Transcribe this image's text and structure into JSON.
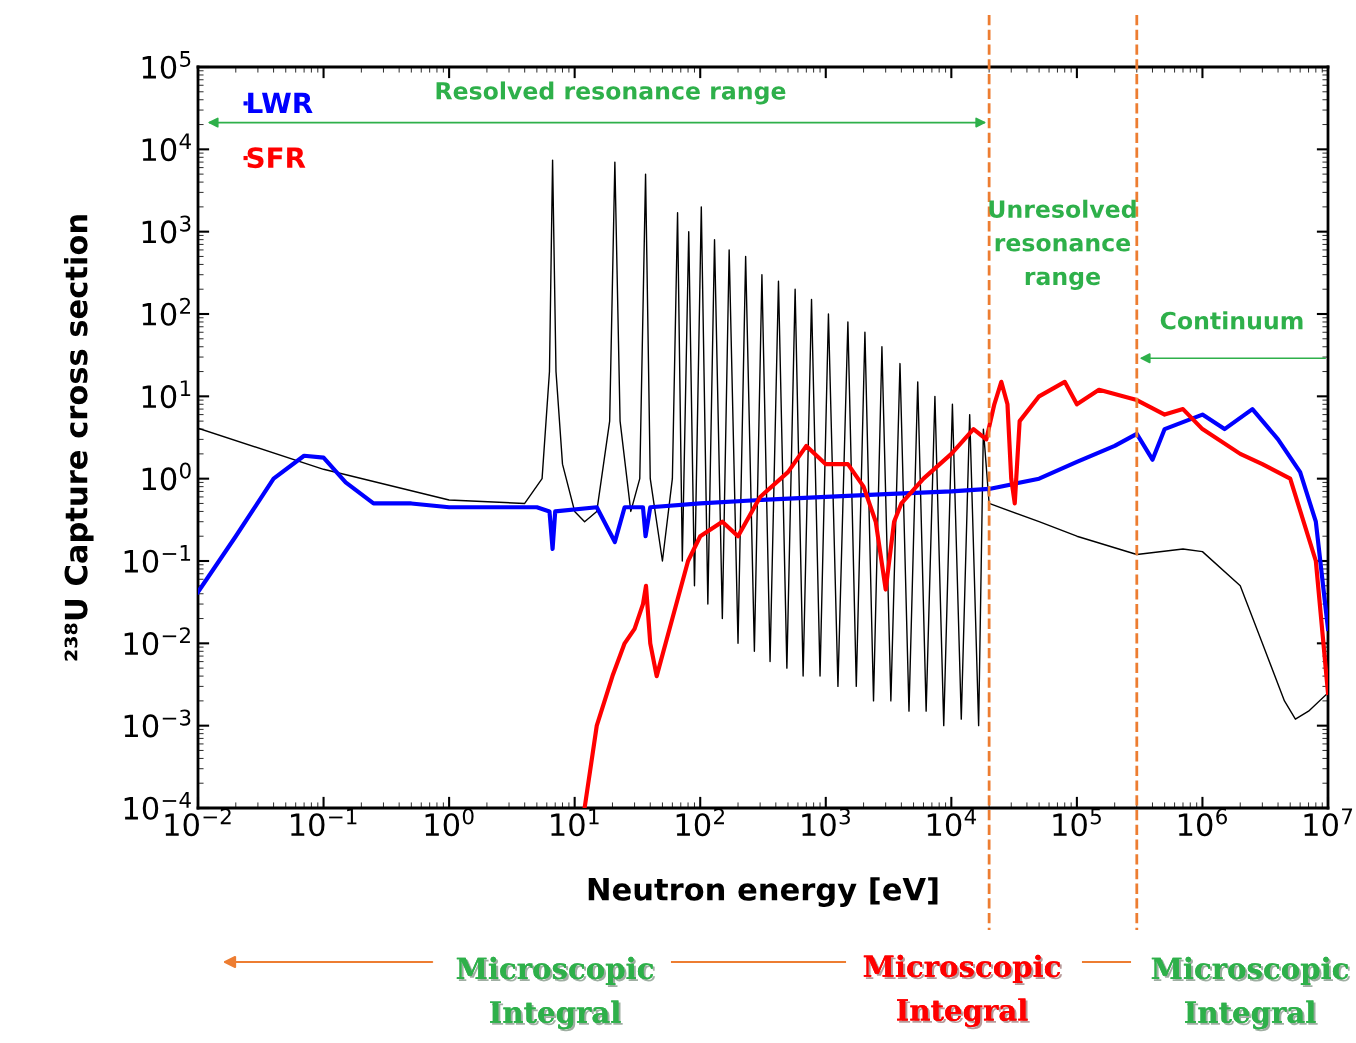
{
  "chart_data": {
    "type": "line",
    "xlabel": "Neutron energy [eV]",
    "ylabel": "²³⁸U Capture cross section",
    "log": "xy",
    "xlim": [
      0.01,
      10000000
    ],
    "ylim": [
      0.0001,
      100000
    ],
    "xticks": [
      {
        "value": 0.01,
        "label": "10$^{−2}$"
      },
      {
        "value": 0.1,
        "label": "10$^{−1}$"
      },
      {
        "value": 1,
        "label": "10$^{0}$"
      },
      {
        "value": 10,
        "label": "10$^{1}$"
      },
      {
        "value": 100,
        "label": "10$^{2}$"
      },
      {
        "value": 1000,
        "label": "10$^{3}$"
      },
      {
        "value": 10000,
        "label": "10$^{4}$"
      },
      {
        "value": 100000,
        "label": "10$^{5}$"
      },
      {
        "value": 1000000,
        "label": "10$^{6}$"
      },
      {
        "value": 10000000,
        "label": "10$^{7}$"
      }
    ],
    "yticks": [
      {
        "value": 0.0001,
        "label": "10$^{−4}$"
      },
      {
        "value": 0.001,
        "label": "10$^{−3}$"
      },
      {
        "value": 0.01,
        "label": "10$^{−2}$"
      },
      {
        "value": 0.1,
        "label": "10$^{−1}$"
      },
      {
        "value": 1,
        "label": "10$^{0}$"
      },
      {
        "value": 10,
        "label": "10$^{1}$"
      },
      {
        "value": 100,
        "label": "10$^{2}$"
      },
      {
        "value": 1000,
        "label": "10$^{3}$"
      },
      {
        "value": 10000,
        "label": "10$^{4}$"
      },
      {
        "value": 100000,
        "label": "10$^{5}$"
      }
    ],
    "legend": "top left",
    "grid": false,
    "series": [
      {
        "color": "#000000",
        "x": [
          0.01,
          0.1,
          1,
          4,
          5.5,
          6.3,
          6.67,
          7.1,
          8,
          10,
          12,
          15,
          19,
          20.9,
          23,
          28,
          33,
          36.7,
          40,
          50,
          60,
          66,
          72,
          81,
          90,
          102,
          115,
          130,
          150,
          170,
          200,
          230,
          270,
          310,
          360,
          420,
          490,
          570,
          660,
          770,
          900,
          1050,
          1250,
          1500,
          1750,
          2050,
          2400,
          2800,
          3300,
          3900,
          4600,
          5400,
          6300,
          7400,
          8700,
          10200,
          12000,
          14000,
          16500,
          18000,
          20000,
          50000,
          100000,
          300000,
          700000,
          1000000,
          2000000,
          3000000,
          4500000,
          5500000,
          7000000,
          10000000
        ],
        "values": [
          4.1,
          1.3,
          0.55,
          0.5,
          1,
          20,
          7400,
          20,
          1.5,
          0.4,
          0.3,
          0.4,
          5,
          7000,
          5,
          0.4,
          1,
          5000,
          1,
          0.1,
          1,
          1700,
          0.1,
          1000,
          0.05,
          2000,
          0.03,
          800,
          0.02,
          600,
          0.01,
          500,
          0.008,
          300,
          0.006,
          250,
          0.005,
          200,
          0.004,
          150,
          0.004,
          100,
          0.003,
          80,
          0.003,
          60,
          0.002,
          40,
          0.002,
          25,
          0.0015,
          15,
          0.0015,
          10,
          0.001,
          8,
          0.0012,
          6,
          0.001,
          4,
          0.5,
          0.3,
          0.2,
          0.12,
          0.14,
          0.13,
          0.05,
          0.01,
          0.002,
          0.0012,
          0.0015,
          0.0025
        ]
      },
      {
        "name": "LWR",
        "color": "#0000ff",
        "x": [
          0.01,
          0.02,
          0.04,
          0.07,
          0.1,
          0.15,
          0.25,
          0.5,
          1,
          2,
          5,
          6.3,
          6.67,
          7,
          15,
          20.9,
          25,
          35,
          36.7,
          40,
          100,
          300,
          1000,
          3000,
          10000,
          20000,
          50000,
          100000,
          200000,
          300000,
          400000,
          500000,
          1000000,
          1500000,
          2500000,
          4000000,
          6000000,
          8000000,
          10000000
        ],
        "values": [
          0.042,
          0.2,
          1.0,
          1.9,
          1.8,
          0.9,
          0.5,
          0.5,
          0.45,
          0.45,
          0.45,
          0.4,
          0.14,
          0.4,
          0.45,
          0.17,
          0.45,
          0.45,
          0.2,
          0.45,
          0.5,
          0.55,
          0.6,
          0.65,
          0.7,
          0.75,
          1.0,
          1.6,
          2.5,
          3.5,
          1.7,
          4,
          6,
          4,
          7,
          3,
          1.2,
          0.3,
          0.015
        ]
      },
      {
        "name": "SFR",
        "color": "#ff0000",
        "x": [
          12,
          15,
          20,
          25,
          30,
          35,
          37,
          40,
          45,
          60,
          80,
          100,
          150,
          200,
          300,
          500,
          700,
          1000,
          1500,
          2000,
          2500,
          3000,
          3500,
          4000,
          6000,
          10000,
          15000,
          19000,
          22000,
          25000,
          28000,
          30000,
          32000,
          35000,
          50000,
          80000,
          100000,
          150000,
          300000,
          500000,
          700000,
          1000000,
          2000000,
          3000000,
          5000000,
          8000000,
          10000000
        ],
        "values": [
          0.0001,
          0.001,
          0.004,
          0.01,
          0.015,
          0.03,
          0.05,
          0.01,
          0.004,
          0.02,
          0.1,
          0.2,
          0.3,
          0.2,
          0.6,
          1.2,
          2.5,
          1.5,
          1.5,
          0.8,
          0.3,
          0.045,
          0.3,
          0.5,
          1,
          2,
          4,
          3,
          8,
          15,
          8,
          1,
          0.5,
          5,
          10,
          15,
          8,
          12,
          9,
          6,
          7,
          4,
          2,
          1.5,
          1,
          0.1,
          0.0025
        ]
      }
    ],
    "ref_lines": [
      {
        "axis": "x",
        "value": 20000,
        "color": "#ed7d31",
        "line_style": "dashed"
      },
      {
        "axis": "x",
        "value": 300000,
        "color": "#ed7d31",
        "line_style": "dashed"
      }
    ],
    "annotations": [
      "Resolved resonance range",
      "Unresolved\nresonance\nrange",
      "Continuum",
      "Microscopic\nIntegral",
      "Microscopic\nIntegral",
      "Microscopic\nIntegral"
    ]
  }
}
